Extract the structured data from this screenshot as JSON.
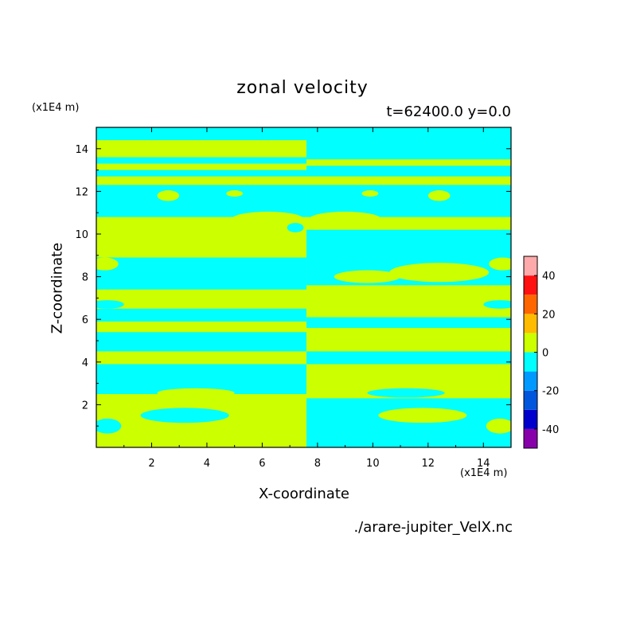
{
  "chart_data": {
    "type": "heatmap",
    "title": "zonal velocity",
    "subtitle": "t=62400.0 y=0.0",
    "xlabel": "X-coordinate",
    "ylabel": "Z-coordinate",
    "x_unit": "(x1E4 m)",
    "y_unit": "(x1E4 m)",
    "xlim": [
      0,
      15
    ],
    "ylim": [
      0,
      15
    ],
    "x_ticks": [
      2,
      4,
      6,
      8,
      10,
      12,
      14
    ],
    "y_ticks": [
      2,
      4,
      6,
      8,
      10,
      12,
      14
    ],
    "colorbar": {
      "levels": [
        -50,
        -40,
        -30,
        -20,
        -10,
        0,
        10,
        20,
        30,
        40,
        50
      ],
      "tick_labels": [
        "-40",
        "-20",
        "0",
        "20",
        "40"
      ],
      "tick_values": [
        -40,
        -20,
        0,
        20,
        40
      ],
      "colors": [
        "#8800aa",
        "#0000cc",
        "#0055dd",
        "#0099ff",
        "#00ffff",
        "#ccff00",
        "#ffbb00",
        "#ff6600",
        "#ff1111",
        "#ffaaaa"
      ]
    },
    "field": {
      "description_units": "zonal velocity bands, left half (x<7.6) and right half (x>7.6) of opposite sign",
      "split_x": 7.6,
      "left_bands": [
        {
          "z0": 14.4,
          "z1": 15.0,
          "value": -5
        },
        {
          "z0": 13.6,
          "z1": 14.4,
          "value": 5
        },
        {
          "z0": 13.3,
          "z1": 13.6,
          "value": -5
        },
        {
          "z0": 13.0,
          "z1": 13.3,
          "value": 5
        },
        {
          "z0": 12.7,
          "z1": 13.0,
          "value": -5
        },
        {
          "z0": 12.3,
          "z1": 12.7,
          "value": 5
        },
        {
          "z0": 10.8,
          "z1": 12.3,
          "value": -5
        },
        {
          "z0": 10.2,
          "z1": 10.8,
          "value": 5
        },
        {
          "z0": 8.9,
          "z1": 10.2,
          "value": 5
        },
        {
          "z0": 7.4,
          "z1": 8.9,
          "value": -5
        },
        {
          "z0": 6.5,
          "z1": 7.4,
          "value": 5
        },
        {
          "z0": 5.9,
          "z1": 6.5,
          "value": -5
        },
        {
          "z0": 5.4,
          "z1": 5.9,
          "value": 5
        },
        {
          "z0": 4.5,
          "z1": 5.4,
          "value": -5
        },
        {
          "z0": 3.9,
          "z1": 4.5,
          "value": 5
        },
        {
          "z0": 2.5,
          "z1": 3.9,
          "value": -5
        },
        {
          "z0": 1.3,
          "z1": 2.5,
          "value": 5
        },
        {
          "z0": 0.0,
          "z1": 1.3,
          "value": 5
        }
      ],
      "right_bands": [
        {
          "z0": 14.4,
          "z1": 15.0,
          "value": -5
        },
        {
          "z0": 13.5,
          "z1": 14.4,
          "value": -5
        },
        {
          "z0": 13.2,
          "z1": 13.5,
          "value": 5
        },
        {
          "z0": 12.7,
          "z1": 13.2,
          "value": -5
        },
        {
          "z0": 12.3,
          "z1": 12.7,
          "value": 5
        },
        {
          "z0": 10.8,
          "z1": 12.3,
          "value": -5
        },
        {
          "z0": 10.2,
          "z1": 10.8,
          "value": 5
        },
        {
          "z0": 8.9,
          "z1": 10.2,
          "value": -5
        },
        {
          "z0": 7.6,
          "z1": 8.9,
          "value": -5
        },
        {
          "z0": 6.1,
          "z1": 7.6,
          "value": 5
        },
        {
          "z0": 5.6,
          "z1": 6.1,
          "value": -5
        },
        {
          "z0": 4.5,
          "z1": 5.6,
          "value": 5
        },
        {
          "z0": 3.9,
          "z1": 4.5,
          "value": -5
        },
        {
          "z0": 2.3,
          "z1": 3.9,
          "value": 5
        },
        {
          "z0": 0.0,
          "z1": 2.3,
          "value": -5
        }
      ]
    }
  },
  "labels": {
    "title": "zonal velocity",
    "subtitle": "t=62400.0 y=0.0",
    "y_unit": "(x1E4 m)",
    "x_unit": "(x1E4 m)",
    "xlabel": "X-coordinate",
    "ylabel": "Z-coordinate",
    "source": "./arare-jupiter_VelX.nc"
  },
  "colors": {
    "positive": "#ccff00",
    "negative": "#00ffff"
  }
}
